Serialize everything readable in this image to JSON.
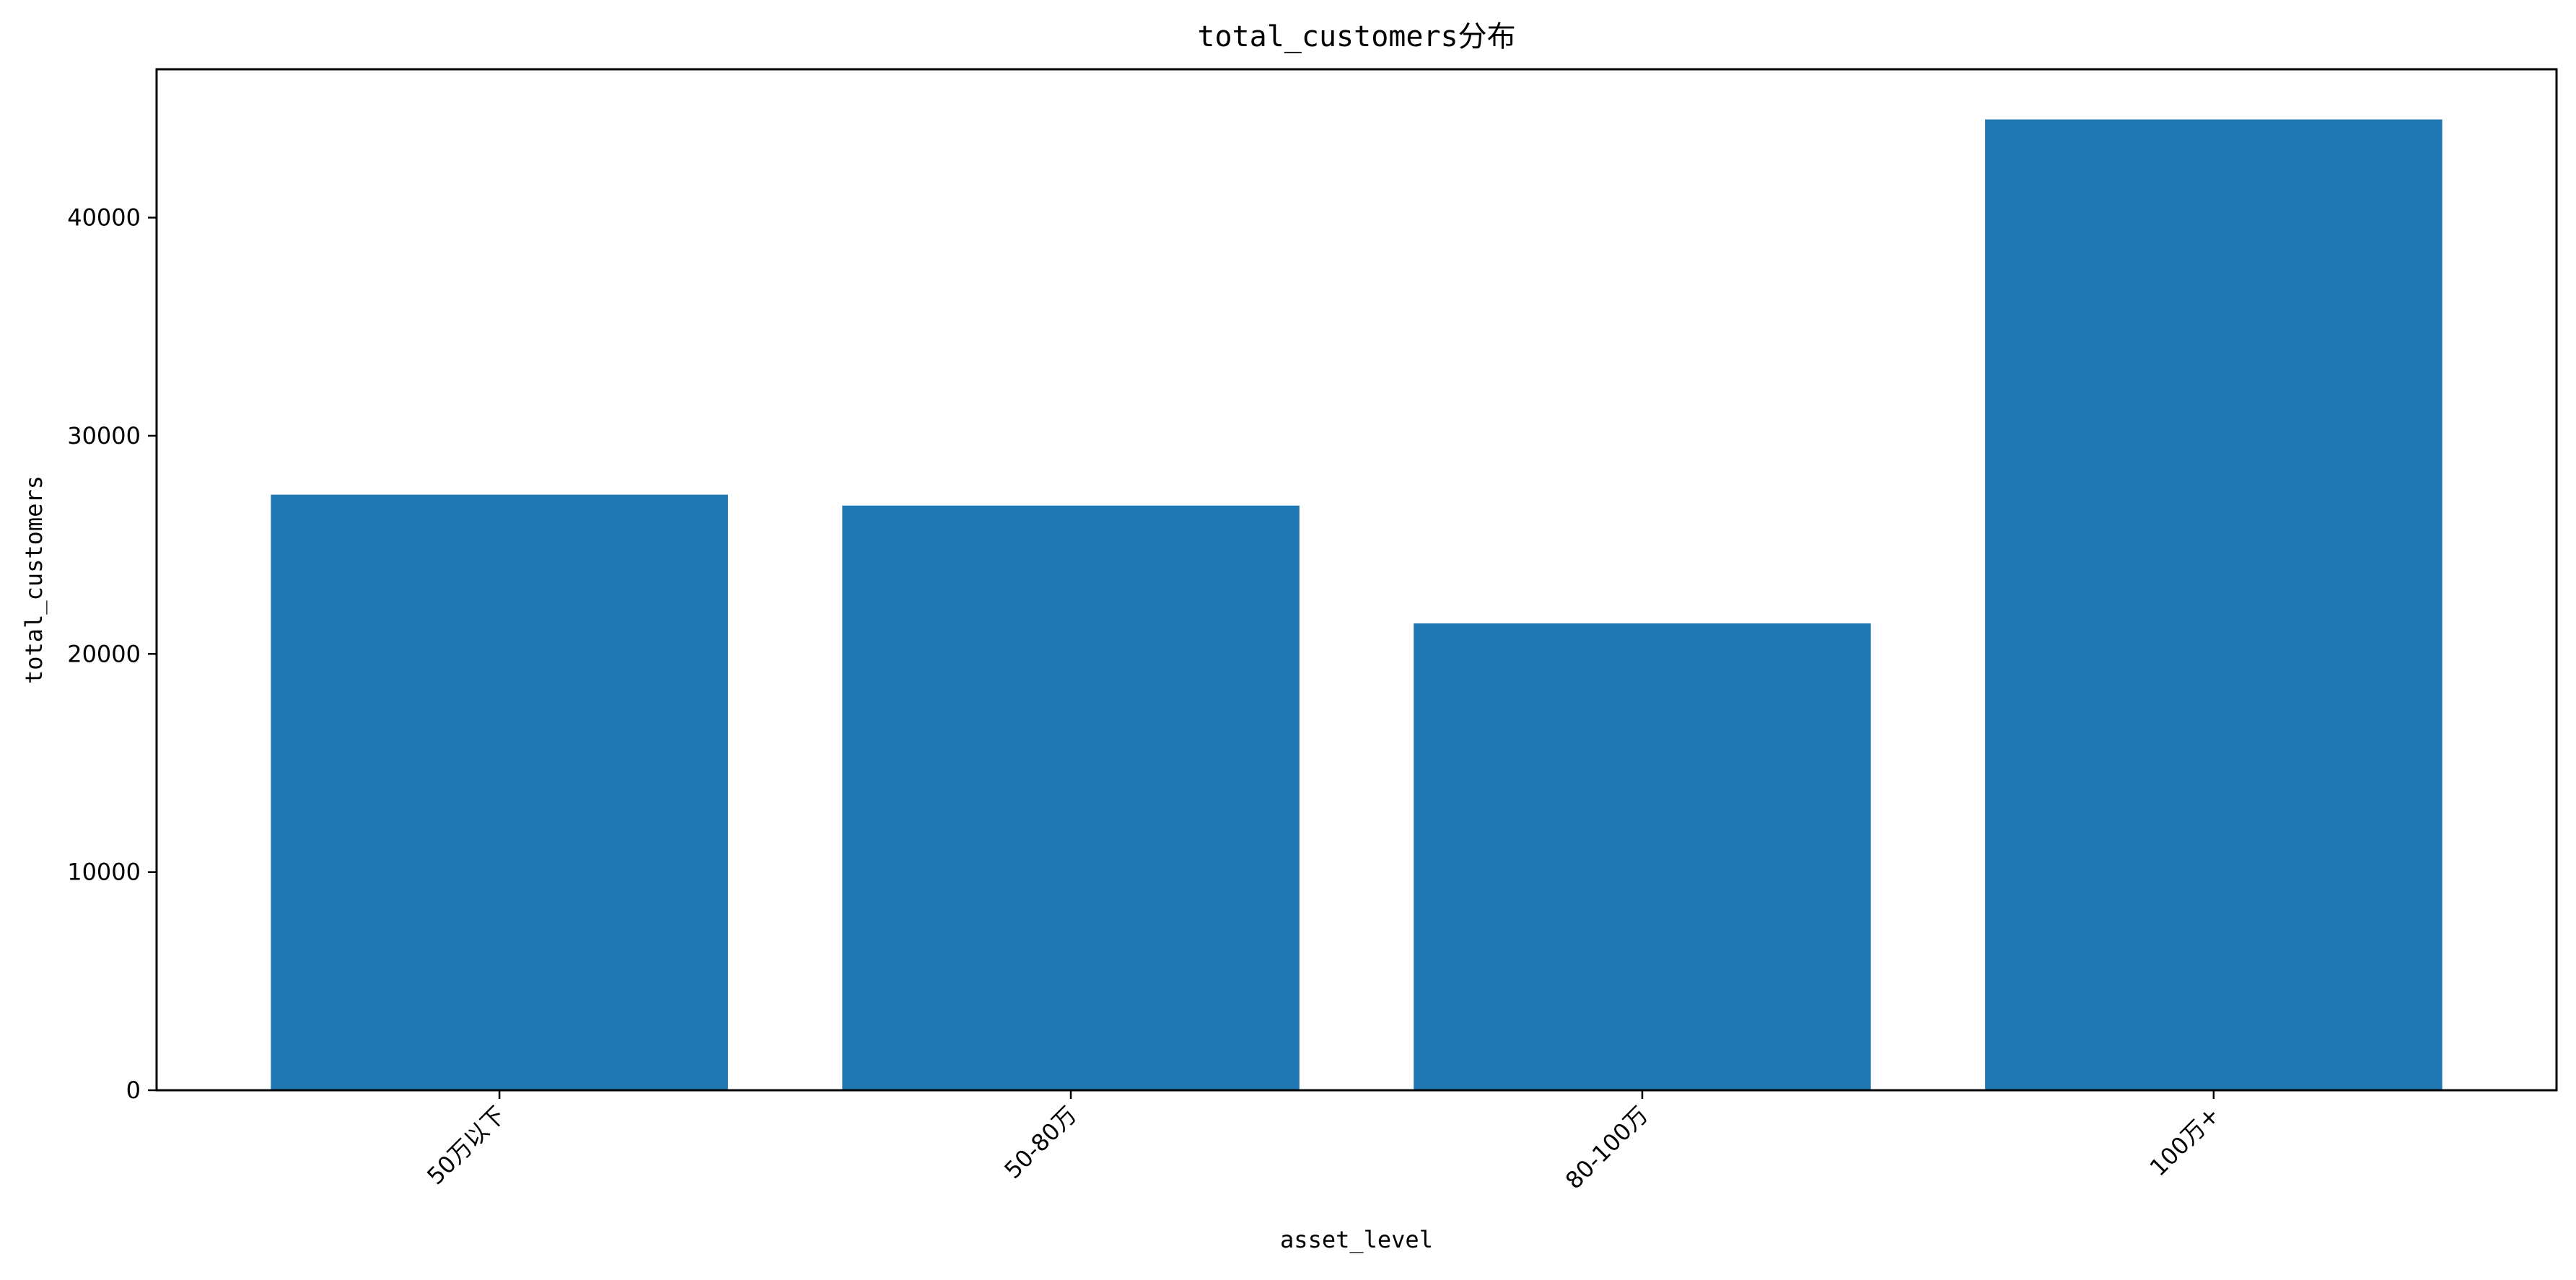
{
  "chart_data": {
    "type": "bar",
    "title": "total_customers分布",
    "xlabel": "asset_level",
    "ylabel": "total_customers",
    "categories": [
      "50万以下",
      "50-80万",
      "80-100万",
      "100万+"
    ],
    "values": [
      27300,
      26800,
      21400,
      44500
    ],
    "ylim": [
      0,
      46800
    ],
    "yticks": [
      0,
      10000,
      20000,
      30000,
      40000
    ],
    "ytick_labels": [
      "0",
      "10000",
      "20000",
      "30000",
      "40000"
    ],
    "xtick_rotation": "45°",
    "grid": false,
    "legend": "none",
    "colors": {
      "bar": "#1f77b4",
      "axis": "#000000",
      "background": "#ffffff"
    }
  }
}
